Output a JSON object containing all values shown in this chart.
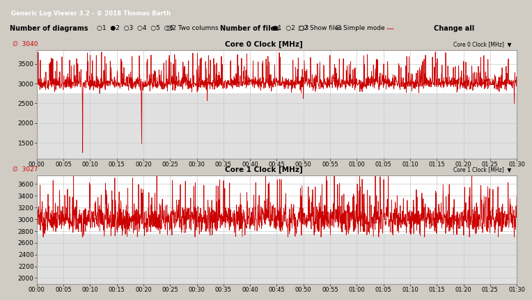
{
  "title1": "Core 0 Clock [MHz]",
  "title2": "Core 1 Clock [MHz]",
  "max_label1": "3040",
  "max_label2": "3027",
  "ylim1": [
    1100,
    3850
  ],
  "ylim2": [
    1900,
    3750
  ],
  "yticks1": [
    1500,
    2000,
    2500,
    3000,
    3500
  ],
  "yticks2": [
    2000,
    2200,
    2400,
    2600,
    2800,
    3000,
    3200,
    3400,
    3600
  ],
  "xtick_labels": [
    "00:00",
    "00:05",
    "00:10",
    "00:15",
    "00:20",
    "00:25",
    "00:30",
    "00:35",
    "00:40",
    "00:45",
    "00:50",
    "00:55",
    "01:00",
    "01:05",
    "01:10",
    "01:15",
    "01:20",
    "01:25",
    "01:30"
  ],
  "bg_outer": "#d4d0c8",
  "bg_titlebar": "#c8d4e8",
  "plot_bg_active": "#ffffff",
  "plot_bg_inactive": "#e8e8e8",
  "line_color": "#cc0000",
  "grid_color": "#c0c0c0",
  "titlebar_text": "Generic Log Viewer 3.2 - © 2018 Thomas Barth",
  "toolbar_text": "Number of diagrams  ○1 ●2 ○3 ○4 ○5 ○6   □2Two columns     Number of files  ●1 ○2 ○3   □2Show files    ☑ Simple mode  —       Change all",
  "signal_noise_seed1": 42,
  "signal_noise_seed2": 7,
  "n_samples": 2000
}
